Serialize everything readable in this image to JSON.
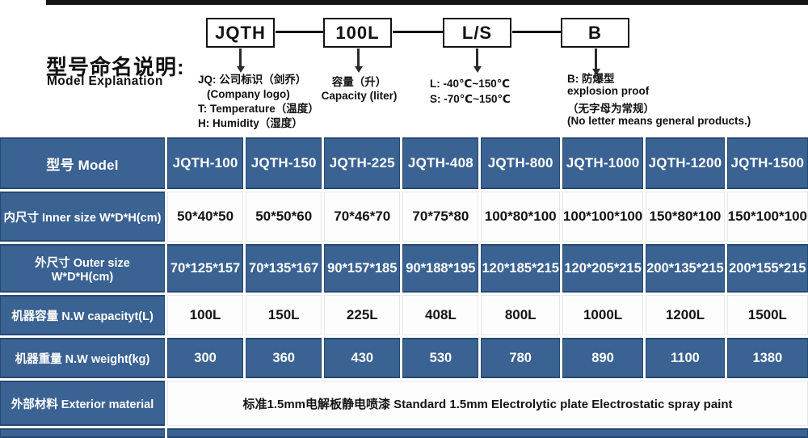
{
  "diagram": {
    "title_cn": "型号命名说明:",
    "title_en": "Model Explanation",
    "boxes": {
      "code": "JQTH",
      "capacity": "100L",
      "temp": "L/S",
      "blast": "B"
    },
    "code_note": [
      "JQ: 公司标识（剑乔）",
      "(Company logo)",
      "T: Temperature（温度）",
      "H: Humidity（湿度）"
    ],
    "capacity_note": [
      "容量（升）",
      "Capacity (liter)"
    ],
    "temp_note": [
      "L: -40℃~150℃",
      "S: -70℃~150℃"
    ],
    "blast_note": [
      "B: 防爆型",
      "explosion proof"
    ],
    "blast_note2": [
      "（无字母为常规）",
      "(No letter means general products.)"
    ]
  },
  "table": {
    "model_header": "型号 Model",
    "models": [
      "JQTH-100",
      "JQTH-150",
      "JQTH-225",
      "JQTH-408",
      "JQTH-800",
      "JQTH-1000",
      "JQTH-1200",
      "JQTH-1500"
    ],
    "inner_size": {
      "label": "内尺寸 Inner size W*D*H(cm)",
      "values": [
        "50*40*50",
        "50*50*60",
        "70*46*70",
        "70*75*80",
        "100*80*100",
        "100*100*100",
        "150*80*100",
        "150*100*100"
      ]
    },
    "outer_size": {
      "label": "外尺寸 Outer size W*D*H(cm)",
      "values": [
        "70*125*157",
        "70*135*167",
        "90*157*185",
        "90*188*195",
        "120*185*215",
        "120*205*215",
        "200*135*215",
        "200*155*215"
      ]
    },
    "capacity": {
      "label": "机器容量 N.W capacityt(L)",
      "values": [
        "100L",
        "150L",
        "225L",
        "408L",
        "800L",
        "1000L",
        "1200L",
        "1500L"
      ]
    },
    "weight": {
      "label": "机器重量 N.W weight(kg)",
      "values": [
        "300",
        "360",
        "430",
        "530",
        "780",
        "890",
        "1100",
        "1380"
      ]
    },
    "material": {
      "label": "外部材料 Exterior material",
      "value": "标准1.5mm电解板静电喷漆  Standard 1.5mm Electrolytic plate Electrostatic spray paint"
    }
  },
  "colors": {
    "cell_blue": "#3A6292",
    "cell_border": "#27496F",
    "top_bar": "#151515"
  }
}
